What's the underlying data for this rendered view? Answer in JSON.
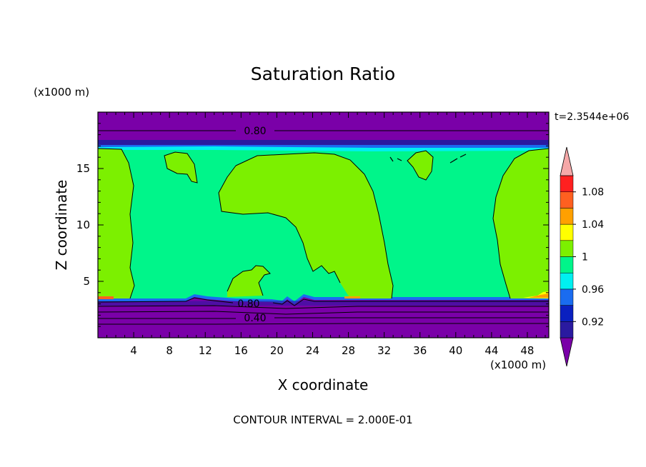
{
  "chart_data": {
    "type": "heatmap",
    "title": "Saturation Ratio",
    "xlabel": "X coordinate",
    "ylabel": "Z coordinate",
    "x_unit": "(x1000 m)",
    "y_unit": "(x1000 m)",
    "time_label": "t=2.3544e+06",
    "footer": "CONTOUR INTERVAL = 2.000E-01",
    "xlim": [
      0,
      50.4
    ],
    "ylim": [
      0,
      20
    ],
    "xticks": [
      4,
      8,
      12,
      16,
      20,
      24,
      28,
      32,
      36,
      40,
      44,
      48
    ],
    "yticks": [
      5,
      10,
      15
    ],
    "colorbar": {
      "labels": [
        "0.92",
        "0.96",
        "1",
        "1.04",
        "1.08"
      ],
      "colors": [
        "#7a00a8",
        "#2a1aa0",
        "#0a20c0",
        "#1a6cf0",
        "#00f0f0",
        "#00f58a",
        "#7cf000",
        "#ffff00",
        "#ffa000",
        "#ff6020",
        "#ff2020",
        "#f5a8a8"
      ]
    },
    "contour_labels": [
      {
        "text": "0.80",
        "x": 17.3,
        "z": 18.5
      },
      {
        "text": "0.80",
        "x": 16.2,
        "z": 2.95
      },
      {
        "text": "0.40",
        "x": 17.3,
        "z": 1.6
      }
    ],
    "regions": {
      "stratosphere": {
        "z_range": [
          16.6,
          20
        ],
        "value": "< 0.92"
      },
      "lower_dry_layer": {
        "z_range": [
          0,
          3.4
        ],
        "value": "< 0.92"
      },
      "cloud_layer": {
        "z_range": [
          3.4,
          16.6
        ],
        "value": "0.98 - 1.02"
      },
      "supersaturated_patches": {
        "value": "1 - 1.04"
      }
    }
  }
}
